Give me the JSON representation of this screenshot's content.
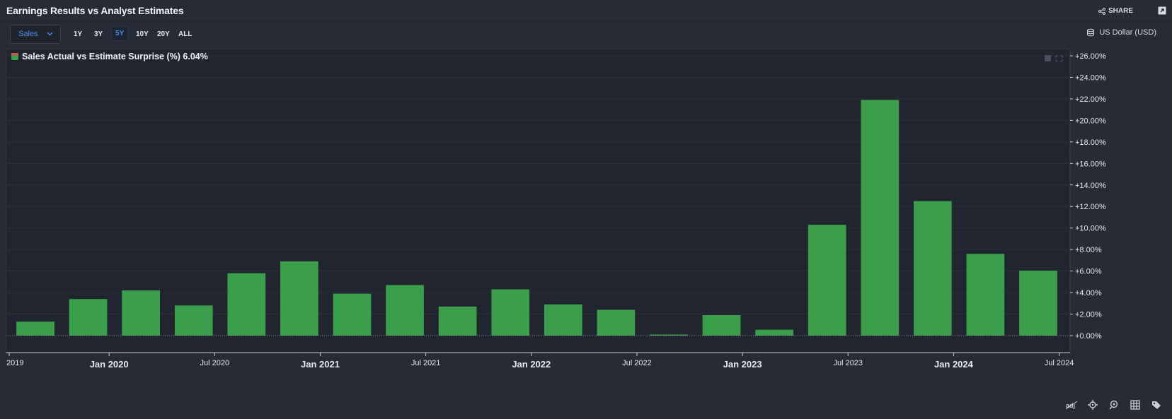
{
  "header": {
    "title": "Earnings Results vs Analyst Estimates",
    "share_label": "SHARE"
  },
  "toolbar": {
    "metric_select": "Sales",
    "ranges": [
      "1Y",
      "3Y",
      "5Y",
      "10Y",
      "20Y",
      "ALL"
    ],
    "active_range": "5Y",
    "currency": "US Dollar (USD)"
  },
  "legend": {
    "label": "Sales Actual vs Estimate Surprise (%) 6.04%",
    "color": "#3a9e4b"
  },
  "colors": {
    "bar": "#3a9e4b",
    "background": "#20252f",
    "panel": "#262b35",
    "accent": "#4d8bf0"
  },
  "chart_data": {
    "type": "bar",
    "series": [
      {
        "name": "Sales Actual vs Estimate Surprise (%)",
        "values": [
          1.3,
          3.4,
          4.2,
          2.8,
          5.8,
          6.9,
          3.9,
          4.7,
          2.7,
          4.3,
          2.9,
          2.4,
          0.1,
          1.9,
          0.55,
          10.3,
          21.9,
          12.5,
          7.6,
          6.04
        ]
      }
    ],
    "categories": [
      "Q3 2019",
      "Q4 2019",
      "Q1 2020",
      "Q2 2020",
      "Q3 2020",
      "Q4 2020",
      "Q1 2021",
      "Q2 2021",
      "Q3 2021",
      "Q4 2021",
      "Q1 2022",
      "Q2 2022",
      "Q3 2022",
      "Q4 2022",
      "Q1 2023",
      "Q2 2023",
      "Q3 2023",
      "Q4 2023",
      "Q1 2024",
      "Q2 2024"
    ],
    "x_ticks": [
      {
        "label": "2019",
        "major": false
      },
      {
        "label": "Jan 2020",
        "major": true
      },
      {
        "label": "Jul 2020",
        "major": false
      },
      {
        "label": "Jan 2021",
        "major": true
      },
      {
        "label": "Jul 2021",
        "major": false
      },
      {
        "label": "Jan 2022",
        "major": true
      },
      {
        "label": "Jul 2022",
        "major": false
      },
      {
        "label": "Jan 2023",
        "major": true
      },
      {
        "label": "Jul 2023",
        "major": false
      },
      {
        "label": "Jan 2024",
        "major": true
      },
      {
        "label": "Jul 2024",
        "major": false
      }
    ],
    "y_ticks": [
      "+0.00%",
      "+2.00%",
      "+4.00%",
      "+6.00%",
      "+8.00%",
      "+10.00%",
      "+12.00%",
      "+14.00%",
      "+16.00%",
      "+18.00%",
      "+20.00%",
      "+22.00%",
      "+24.00%",
      "+26.00%"
    ],
    "ylim": [
      0,
      26
    ],
    "grid": true,
    "legend_position": "top-left"
  }
}
